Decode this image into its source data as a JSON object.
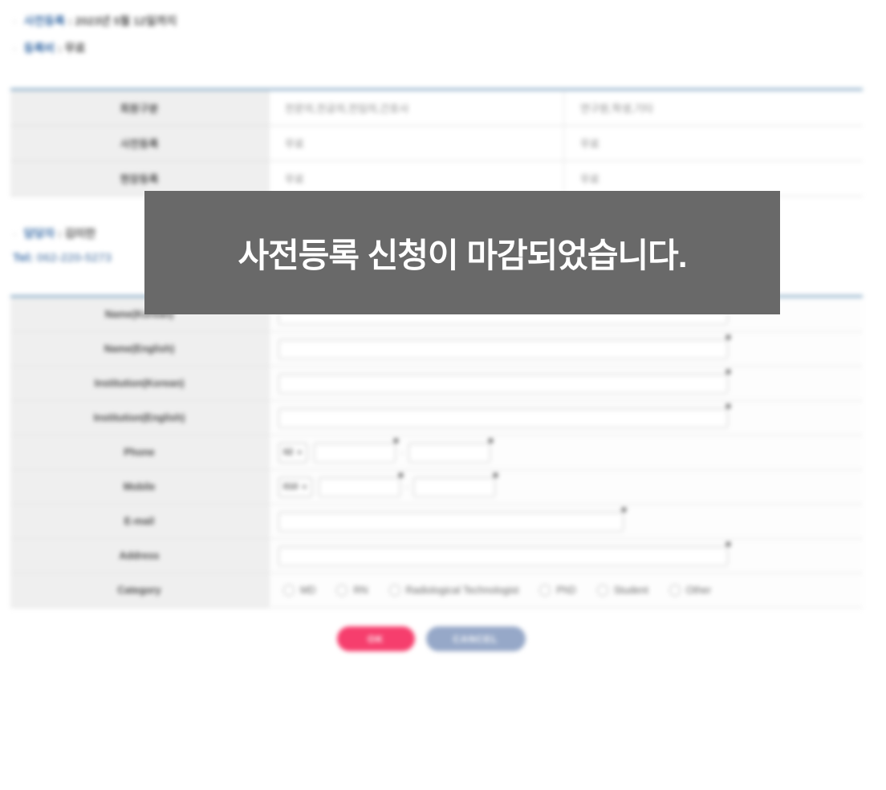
{
  "info": {
    "bullet": "·",
    "prereg_label": "사전등록",
    "prereg_value": ": 2023년 5월 12일까지",
    "fee_label": "등록비",
    "fee_value": ": 무료"
  },
  "fee_table": {
    "rows": [
      {
        "label": "회원구분",
        "col1": "전문의,전공의,전임의,간호사",
        "col2": "연구원,학생,기타"
      },
      {
        "label": "사전등록",
        "col1": "무료",
        "col2": "무료"
      },
      {
        "label": "현장등록",
        "col1": "무료",
        "col2": "무료"
      }
    ]
  },
  "contact": {
    "bullet": "·",
    "manager_label": "담당자",
    "manager_value": ": 김미란",
    "tel_label": "Tel:",
    "tel_number": "062-220-5273"
  },
  "overlay": {
    "message": "사전등록 신청이 마감되었습니다."
  },
  "form": {
    "labels": {
      "name_ko": "Name(Korean)",
      "name_en": "Name(English)",
      "inst_ko": "Institution(Korean)",
      "inst_en": "Institution(English)",
      "phone": "Phone",
      "mobile": "Mobile",
      "email": "E-mail",
      "address": "Address",
      "category": "Category"
    },
    "phone_select": {
      "selected": "02",
      "arrow": "▼"
    },
    "mobile_select": {
      "selected": "010",
      "arrow": "▼"
    },
    "dash": "-",
    "category_options": [
      "MD",
      "RN",
      "Radiological Technologist",
      "PhD",
      "Student",
      "Other"
    ]
  },
  "buttons": {
    "ok": "OK",
    "cancel": "CANCEL"
  },
  "colors": {
    "accent_blue": "#3e6fa8",
    "table_top_border": "#8badc8",
    "overlay_bg": "#696969",
    "ok_pink": "#f63e6d",
    "cancel_blue": "#96a8c8"
  }
}
